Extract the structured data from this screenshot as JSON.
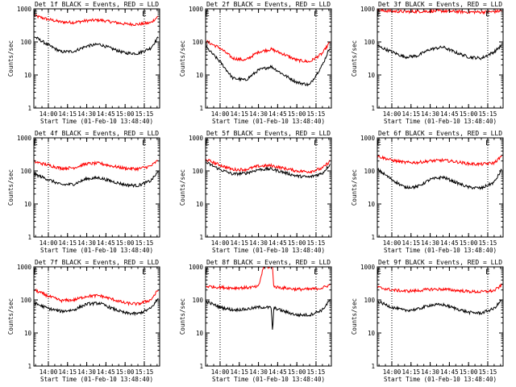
{
  "chart_data": [
    {
      "type": "line",
      "title": "Det 1f BLACK = Events, RED = LLD",
      "xlabel": "Start Time (01-Feb-10 13:48:40)",
      "ylabel": "Counts/sec",
      "ylim": [
        1,
        1000
      ],
      "yscale": "log",
      "xlim": [
        "13:48:40",
        "15:27:00"
      ],
      "x_ticks": [
        "14:00",
        "14:15",
        "14:30",
        "14:45",
        "15:00",
        "15:15"
      ],
      "y_ticks": [
        "1",
        "10",
        "100",
        "1000"
      ],
      "markers": [
        {
          "x": "13:50:00",
          "label": "E"
        },
        {
          "x": "15:15:00",
          "label": "E"
        }
      ],
      "dotted_lines": [
        "14:00:00",
        "15:15:00"
      ],
      "colors": {
        "events": "#000000",
        "lld": "#ff0000"
      },
      "x": [
        "13:49",
        "14:00",
        "14:10",
        "14:20",
        "14:30",
        "14:40",
        "14:50",
        "15:00",
        "15:10",
        "15:20",
        "15:26"
      ],
      "series": [
        {
          "name": "Events",
          "values": [
            145,
            80,
            50,
            52,
            75,
            85,
            62,
            46,
            45,
            65,
            140
          ]
        },
        {
          "name": "LLD",
          "values": [
            620,
            480,
            400,
            390,
            440,
            460,
            400,
            350,
            340,
            380,
            600
          ]
        }
      ]
    },
    {
      "type": "line",
      "title": "Det 2f BLACK = Events, RED = LLD",
      "xlabel": "Start Time (01-Feb-10 13:48:40)",
      "ylabel": "Counts/sec",
      "ylim": [
        1,
        1000
      ],
      "yscale": "log",
      "xlim": [
        "13:48:40",
        "15:27:00"
      ],
      "x_ticks": [
        "14:00",
        "14:15",
        "14:30",
        "14:45",
        "15:00",
        "15:15"
      ],
      "y_ticks": [
        "1",
        "10",
        "100",
        "1000"
      ],
      "markers": [
        {
          "x": "13:50:00",
          "label": "E"
        },
        {
          "x": "15:15:00",
          "label": "E"
        }
      ],
      "dotted_lines": [
        "14:00:00",
        "15:15:00"
      ],
      "colors": {
        "events": "#000000",
        "lld": "#ff0000"
      },
      "x": [
        "13:49",
        "14:00",
        "14:10",
        "14:20",
        "14:30",
        "14:40",
        "14:50",
        "15:00",
        "15:10",
        "15:20",
        "15:26"
      ],
      "series": [
        {
          "name": "Events",
          "values": [
            70,
            25,
            8,
            7,
            14,
            18,
            10,
            6,
            5,
            20,
            70
          ]
        },
        {
          "name": "LLD",
          "values": [
            105,
            65,
            32,
            28,
            50,
            60,
            42,
            28,
            25,
            45,
            100
          ]
        }
      ]
    },
    {
      "type": "line",
      "title": "Det 3f BLACK = Events, RED = LLD",
      "xlabel": "Start Time (01-Feb-10 13:48:40)",
      "ylabel": "Counts/sec",
      "ylim": [
        1,
        1000
      ],
      "yscale": "log",
      "xlim": [
        "13:48:40",
        "15:27:00"
      ],
      "x_ticks": [
        "14:00",
        "14:15",
        "14:30",
        "14:45",
        "15:00",
        "15:15"
      ],
      "y_ticks": [
        "1",
        "10",
        "100",
        "1000"
      ],
      "markers": [
        {
          "x": "13:50:00",
          "label": "E"
        },
        {
          "x": "15:15:00",
          "label": "E"
        }
      ],
      "dotted_lines": [
        "14:00:00",
        "15:15:00"
      ],
      "colors": {
        "events": "#000000",
        "lld": "#ff0000"
      },
      "x": [
        "13:49",
        "14:00",
        "14:10",
        "14:20",
        "14:30",
        "14:40",
        "14:50",
        "15:00",
        "15:10",
        "15:20",
        "15:26"
      ],
      "series": [
        {
          "name": "Events",
          "values": [
            75,
            50,
            35,
            38,
            60,
            70,
            48,
            35,
            32,
            50,
            80
          ]
        },
        {
          "name": "LLD",
          "values": [
            900,
            850,
            820,
            830,
            850,
            860,
            830,
            800,
            800,
            820,
            880
          ]
        }
      ]
    },
    {
      "type": "line",
      "title": "Det 4f BLACK = Events, RED = LLD",
      "xlabel": "Start Time (01-Feb-10 13:48:40)",
      "ylabel": "Counts/sec",
      "ylim": [
        1,
        1000
      ],
      "yscale": "log",
      "xlim": [
        "13:48:40",
        "15:27:00"
      ],
      "x_ticks": [
        "14:00",
        "14:15",
        "14:30",
        "14:45",
        "15:00",
        "15:15"
      ],
      "y_ticks": [
        "1",
        "10",
        "100",
        "1000"
      ],
      "markers": [
        {
          "x": "13:50:00",
          "label": "E"
        },
        {
          "x": "15:15:00",
          "label": "E"
        }
      ],
      "dotted_lines": [
        "14:00:00",
        "15:15:00"
      ],
      "colors": {
        "events": "#000000",
        "lld": "#ff0000"
      },
      "x": [
        "13:49",
        "14:00",
        "14:10",
        "14:20",
        "14:30",
        "14:40",
        "14:50",
        "15:00",
        "15:10",
        "15:20",
        "15:26"
      ],
      "series": [
        {
          "name": "Events",
          "values": [
            80,
            55,
            38,
            40,
            58,
            62,
            48,
            38,
            36,
            50,
            95
          ]
        },
        {
          "name": "LLD",
          "values": [
            190,
            150,
            120,
            125,
            165,
            170,
            140,
            120,
            115,
            140,
            210
          ]
        }
      ]
    },
    {
      "type": "line",
      "title": "Det 5f BLACK = Events, RED = LLD",
      "xlabel": "Start Time (01-Feb-10 13:48:40)",
      "ylabel": "Counts/sec",
      "ylim": [
        1,
        1000
      ],
      "yscale": "log",
      "xlim": [
        "13:48:40",
        "15:27:00"
      ],
      "x_ticks": [
        "14:00",
        "14:15",
        "14:30",
        "14:45",
        "15:00",
        "15:15"
      ],
      "y_ticks": [
        "1",
        "10",
        "100",
        "1000"
      ],
      "markers": [
        {
          "x": "13:50:00",
          "label": "E"
        },
        {
          "x": "15:15:00",
          "label": "E"
        }
      ],
      "dotted_lines": [
        "14:00:00",
        "15:15:00"
      ],
      "colors": {
        "events": "#000000",
        "lld": "#ff0000"
      },
      "x": [
        "13:49",
        "14:00",
        "14:10",
        "14:20",
        "14:30",
        "14:40",
        "14:50",
        "15:00",
        "15:10",
        "15:20",
        "15:26"
      ],
      "series": [
        {
          "name": "Events",
          "values": [
            180,
            110,
            80,
            85,
            110,
            115,
            90,
            70,
            65,
            85,
            160
          ]
        },
        {
          "name": "LLD",
          "values": [
            220,
            150,
            110,
            110,
            140,
            145,
            120,
            100,
            95,
            120,
            200
          ]
        }
      ]
    },
    {
      "type": "line",
      "title": "Det 6f BLACK = Events, RED = LLD",
      "xlabel": "Start Time (01-Feb-10 13:48:40)",
      "ylabel": "Counts/sec",
      "ylim": [
        1,
        1000
      ],
      "yscale": "log",
      "xlim": [
        "13:48:40",
        "15:27:00"
      ],
      "x_ticks": [
        "14:00",
        "14:15",
        "14:30",
        "14:45",
        "15:00",
        "15:15"
      ],
      "y_ticks": [
        "1",
        "10",
        "100",
        "1000"
      ],
      "markers": [
        {
          "x": "13:50:00",
          "label": "E"
        },
        {
          "x": "15:15:00",
          "label": "E"
        }
      ],
      "dotted_lines": [
        "14:00:00",
        "15:15:00"
      ],
      "colors": {
        "events": "#000000",
        "lld": "#ff0000"
      },
      "x": [
        "13:49",
        "14:00",
        "14:10",
        "14:20",
        "14:30",
        "14:40",
        "14:50",
        "15:00",
        "15:10",
        "15:20",
        "15:26"
      ],
      "series": [
        {
          "name": "Events",
          "values": [
            110,
            55,
            32,
            33,
            55,
            65,
            45,
            32,
            30,
            45,
            110
          ]
        },
        {
          "name": "LLD",
          "values": [
            280,
            210,
            180,
            180,
            200,
            210,
            190,
            165,
            160,
            175,
            280
          ]
        }
      ]
    },
    {
      "type": "line",
      "title": "Det 7f BLACK = Events, RED = LLD",
      "xlabel": "Start Time (01-Feb-10 13:48:40)",
      "ylabel": "Counts/sec",
      "ylim": [
        1,
        1000
      ],
      "yscale": "log",
      "xlim": [
        "13:48:40",
        "15:27:00"
      ],
      "x_ticks": [
        "14:00",
        "14:15",
        "14:30",
        "14:45",
        "15:00",
        "15:15"
      ],
      "y_ticks": [
        "1",
        "10",
        "100",
        "1000"
      ],
      "markers": [
        {
          "x": "13:50:00",
          "label": "E"
        },
        {
          "x": "15:15:00",
          "label": "E"
        }
      ],
      "dotted_lines": [
        "14:00:00",
        "15:15:00"
      ],
      "colors": {
        "events": "#000000",
        "lld": "#ff0000"
      },
      "x": [
        "13:49",
        "14:00",
        "14:10",
        "14:20",
        "14:30",
        "14:40",
        "14:50",
        "15:00",
        "15:10",
        "15:20",
        "15:26"
      ],
      "series": [
        {
          "name": "Events",
          "values": [
            80,
            55,
            45,
            50,
            75,
            80,
            55,
            40,
            38,
            55,
            110
          ]
        },
        {
          "name": "LLD",
          "values": [
            200,
            130,
            95,
            100,
            130,
            135,
            105,
            80,
            75,
            100,
            200
          ]
        }
      ]
    },
    {
      "type": "line",
      "title": "Det 8f BLACK = Events, RED = LLD",
      "xlabel": "Start Time (01-Feb-10 13:48:40)",
      "ylabel": "Counts/sec",
      "ylim": [
        1,
        1000
      ],
      "yscale": "log",
      "xlim": [
        "13:48:40",
        "15:27:00"
      ],
      "x_ticks": [
        "14:00",
        "14:15",
        "14:30",
        "14:45",
        "15:00",
        "15:15"
      ],
      "y_ticks": [
        "1",
        "10",
        "100",
        "1000"
      ],
      "markers": [
        {
          "x": "13:50:00",
          "label": "E"
        },
        {
          "x": "15:15:00",
          "label": "E"
        }
      ],
      "dotted_lines": [
        "14:00:00",
        "15:15:00"
      ],
      "colors": {
        "events": "#000000",
        "lld": "#ff0000"
      },
      "x": [
        "13:49",
        "14:00",
        "14:10",
        "14:20",
        "14:30",
        "14:34",
        "14:35",
        "14:40",
        "14:41",
        "14:42",
        "14:50",
        "15:00",
        "15:10",
        "15:20",
        "15:26"
      ],
      "series": [
        {
          "name": "Events",
          "values": [
            90,
            60,
            50,
            52,
            60,
            60,
            60,
            58,
            10,
            58,
            45,
            35,
            35,
            50,
            100
          ]
        },
        {
          "name": "LLD",
          "values": [
            260,
            240,
            230,
            235,
            250,
            1000,
            1000,
            1000,
            1000,
            250,
            230,
            210,
            210,
            230,
            290
          ]
        }
      ]
    },
    {
      "type": "line",
      "title": "Det 9f BLACK = Events, RED = LLD",
      "xlabel": "Start Time (01-Feb-10 13:48:40)",
      "ylabel": "Counts/sec",
      "ylim": [
        1,
        1000
      ],
      "yscale": "log",
      "xlim": [
        "13:48:40",
        "15:27:00"
      ],
      "x_ticks": [
        "14:00",
        "14:15",
        "14:30",
        "14:45",
        "15:00",
        "15:15"
      ],
      "y_ticks": [
        "1",
        "10",
        "100",
        "1000"
      ],
      "markers": [
        {
          "x": "13:50:00",
          "label": "E"
        },
        {
          "x": "15:15:00",
          "label": "E"
        }
      ],
      "dotted_lines": [
        "14:00:00",
        "15:15:00"
      ],
      "colors": {
        "events": "#000000",
        "lld": "#ff0000"
      },
      "x": [
        "13:49",
        "14:00",
        "14:10",
        "14:20",
        "14:30",
        "14:40",
        "14:50",
        "15:00",
        "15:10",
        "15:20",
        "15:26"
      ],
      "series": [
        {
          "name": "Events",
          "values": [
            90,
            60,
            48,
            52,
            70,
            72,
            55,
            42,
            40,
            55,
            100
          ]
        },
        {
          "name": "LLD",
          "values": [
            240,
            200,
            185,
            190,
            210,
            210,
            195,
            180,
            175,
            190,
            280
          ]
        }
      ]
    }
  ]
}
